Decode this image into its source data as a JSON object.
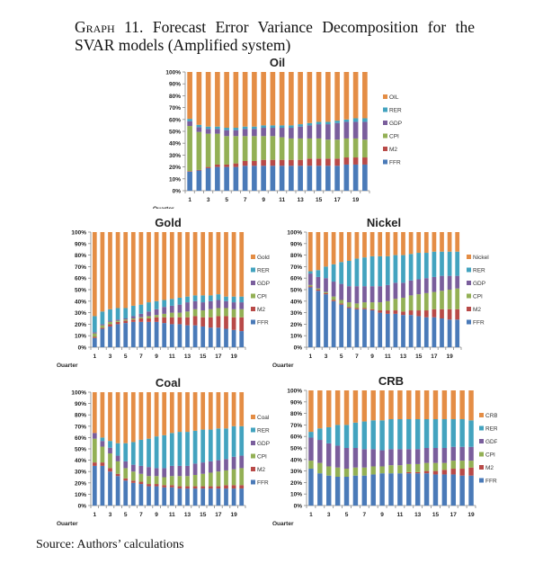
{
  "document": {
    "graph_label": "Graph 11.",
    "title": "Forecast Error Variance Decomposition for the SVAR models (Amplified system)",
    "source": "Source: Authors’ calculations"
  },
  "colors": {
    "FFR": "#4a7ab8",
    "M2": "#b84a48",
    "CPI": "#93b055",
    "GDP": "#7a5e9c",
    "RER": "#43a3bf",
    "Commodity": "#e48d45"
  },
  "chart_data": [
    {
      "type": "bar",
      "stacked": true,
      "title": "Oil",
      "xlabel": "Quarter",
      "ylabel": "",
      "ylim": [
        0,
        100
      ],
      "yticks": [
        "0%",
        "10%",
        "20%",
        "30%",
        "40%",
        "50%",
        "60%",
        "70%",
        "80%",
        "90%",
        "100%"
      ],
      "xtick_labels": [
        "1",
        "3",
        "5",
        "7",
        "9",
        "11",
        "13",
        "15",
        "17",
        "19"
      ],
      "categories": [
        1,
        2,
        3,
        4,
        5,
        6,
        7,
        8,
        9,
        10,
        11,
        12,
        13,
        14,
        15,
        16,
        17,
        18,
        19,
        20
      ],
      "legend": [
        "OIL",
        "RER",
        "GDP",
        "CPI",
        "M2",
        "FFR"
      ],
      "legend_position": "right",
      "series": [
        {
          "name": "FFR",
          "values": [
            16,
            17,
            19,
            20,
            20,
            20,
            21,
            21,
            21,
            21,
            21,
            21,
            21,
            21,
            21,
            21,
            21,
            22,
            22,
            22
          ]
        },
        {
          "name": "M2",
          "values": [
            0.5,
            0.5,
            1,
            2,
            2,
            3,
            4,
            4,
            5,
            5,
            5,
            5,
            5,
            6,
            6,
            6,
            6,
            6,
            6,
            6
          ]
        },
        {
          "name": "CPI",
          "values": [
            38,
            32,
            28,
            26,
            24,
            23,
            21,
            21,
            20,
            20,
            19,
            18,
            18,
            17,
            17,
            16,
            16,
            16,
            16,
            15
          ]
        },
        {
          "name": "GDP",
          "values": [
            4,
            4,
            4,
            4,
            5,
            5,
            6,
            6,
            7,
            7,
            8,
            9,
            10,
            11,
            12,
            13,
            14,
            14,
            14,
            15
          ]
        },
        {
          "name": "RER",
          "values": [
            2,
            2,
            2,
            2,
            2,
            2,
            2,
            2,
            2,
            2,
            2,
            2,
            2,
            2,
            2,
            2,
            2,
            2,
            3,
            3
          ]
        },
        {
          "name": "OIL",
          "values": [
            39.5,
            44.5,
            46,
            46,
            47,
            47,
            46,
            46,
            45,
            45,
            45,
            45,
            44,
            43,
            42,
            42,
            41,
            40,
            39,
            39
          ]
        }
      ]
    },
    {
      "type": "bar",
      "stacked": true,
      "title": "Gold",
      "xlabel": "Quarter",
      "ylabel": "",
      "ylim": [
        0,
        100
      ],
      "yticks": [
        "0%",
        "10%",
        "20%",
        "30%",
        "40%",
        "50%",
        "60%",
        "70%",
        "80%",
        "90%",
        "100%"
      ],
      "xtick_labels": [
        "1",
        "3",
        "5",
        "7",
        "9",
        "11",
        "13",
        "15",
        "17",
        "19"
      ],
      "categories": [
        1,
        2,
        3,
        4,
        5,
        6,
        7,
        8,
        9,
        10,
        11,
        12,
        13,
        14,
        15,
        16,
        17,
        18,
        19,
        20
      ],
      "legend": [
        "Gold",
        "RER",
        "GDP",
        "CPI",
        "M2",
        "FFR"
      ],
      "legend_position": "right",
      "series": [
        {
          "name": "FFR",
          "values": [
            8,
            16,
            18,
            20,
            21,
            22,
            22,
            22,
            22,
            21,
            20,
            20,
            19,
            19,
            18,
            17,
            17,
            16,
            15,
            14
          ]
        },
        {
          "name": "M2",
          "values": [
            1,
            1,
            2,
            2,
            2,
            2,
            3,
            3,
            4,
            5,
            6,
            6,
            7,
            8,
            8,
            9,
            10,
            11,
            11,
            12
          ]
        },
        {
          "name": "CPI",
          "values": [
            3,
            2,
            2,
            1,
            1,
            1,
            1,
            2,
            2,
            3,
            4,
            4,
            5,
            6,
            6,
            7,
            7,
            7,
            7,
            7
          ]
        },
        {
          "name": "GDP",
          "values": [
            1,
            1,
            1,
            1,
            1,
            2,
            3,
            4,
            5,
            6,
            6,
            7,
            8,
            7,
            7,
            7,
            7,
            6,
            6,
            6
          ]
        },
        {
          "name": "RER",
          "values": [
            14,
            11,
            10,
            10,
            9,
            9,
            8,
            8,
            7,
            6,
            6,
            6,
            5,
            5,
            6,
            5,
            5,
            4,
            5,
            5
          ]
        },
        {
          "name": "Gold",
          "values": [
            73,
            69,
            67,
            66,
            66,
            64,
            63,
            61,
            60,
            59,
            58,
            57,
            56,
            55,
            55,
            55,
            54,
            56,
            56,
            56
          ]
        }
      ]
    },
    {
      "type": "bar",
      "stacked": true,
      "title": "Nickel",
      "xlabel": "Quarter",
      "ylabel": "",
      "ylim": [
        0,
        100
      ],
      "yticks": [
        "0%",
        "10%",
        "20%",
        "30%",
        "40%",
        "50%",
        "60%",
        "70%",
        "80%",
        "90%",
        "100%"
      ],
      "xtick_labels": [
        "1",
        "3",
        "5",
        "7",
        "9",
        "11",
        "13",
        "15",
        "17",
        "19"
      ],
      "categories": [
        1,
        2,
        3,
        4,
        5,
        6,
        7,
        8,
        9,
        10,
        11,
        12,
        13,
        14,
        15,
        16,
        17,
        18,
        19,
        20
      ],
      "legend": [
        "Nickel",
        "RER",
        "GDP",
        "CPI",
        "M2",
        "FFR"
      ],
      "legend_position": "right",
      "series": [
        {
          "name": "FFR",
          "values": [
            52,
            49,
            46,
            40,
            37,
            34,
            33,
            33,
            32,
            30,
            29,
            29,
            28,
            28,
            27,
            26,
            26,
            25,
            24,
            24
          ]
        },
        {
          "name": "M2",
          "values": [
            1,
            1,
            1,
            1,
            1,
            1,
            1,
            1,
            1,
            2,
            3,
            3,
            3,
            4,
            5,
            6,
            7,
            8,
            9,
            9
          ]
        },
        {
          "name": "CPI",
          "values": [
            1,
            1,
            1,
            3,
            3,
            4,
            4,
            5,
            6,
            7,
            8,
            10,
            12,
            13,
            14,
            15,
            15,
            16,
            17,
            18
          ]
        },
        {
          "name": "GDP",
          "values": [
            10,
            10,
            12,
            13,
            14,
            14,
            15,
            14,
            14,
            14,
            14,
            14,
            13,
            13,
            13,
            13,
            13,
            13,
            12,
            11
          ]
        },
        {
          "name": "RER",
          "values": [
            2,
            6,
            10,
            15,
            19,
            22,
            24,
            25,
            26,
            26,
            25,
            24,
            24,
            23,
            23,
            22,
            22,
            21,
            21,
            21
          ]
        },
        {
          "name": "Nickel",
          "values": [
            34,
            33,
            30,
            28,
            26,
            25,
            23,
            22,
            21,
            21,
            21,
            20,
            20,
            19,
            18,
            18,
            17,
            17,
            17,
            17
          ]
        }
      ]
    },
    {
      "type": "bar",
      "stacked": true,
      "title": "Coal",
      "xlabel": "Quarter",
      "ylabel": "",
      "ylim": [
        0,
        100
      ],
      "yticks": [
        "0%",
        "10%",
        "20%",
        "30%",
        "40%",
        "50%",
        "60%",
        "70%",
        "80%",
        "90%",
        "100%"
      ],
      "xtick_labels": [
        "1",
        "3",
        "5",
        "7",
        "9",
        "11",
        "13",
        "15",
        "17",
        "19"
      ],
      "categories": [
        1,
        2,
        3,
        4,
        5,
        6,
        7,
        8,
        9,
        10,
        11,
        12,
        13,
        14,
        15,
        16,
        17,
        18,
        19,
        20
      ],
      "legend": [
        "Coal",
        "RER",
        "GDP",
        "CPI",
        "M2",
        "FFR"
      ],
      "legend_position": "right",
      "series": [
        {
          "name": "FFR",
          "values": [
            35,
            35,
            30,
            26,
            22,
            20,
            19,
            17,
            17,
            16,
            16,
            15,
            15,
            15,
            15,
            15,
            15,
            15,
            15,
            15
          ]
        },
        {
          "name": "M2",
          "values": [
            3,
            3,
            3,
            2,
            2,
            2,
            2,
            2,
            2,
            2,
            2,
            2,
            2,
            2,
            2,
            2,
            2,
            3,
            3,
            3
          ]
        },
        {
          "name": "CPI",
          "values": [
            21,
            14,
            13,
            11,
            9,
            8,
            7,
            7,
            7,
            7,
            8,
            9,
            9,
            10,
            11,
            12,
            13,
            13,
            14,
            15
          ]
        },
        {
          "name": "GDP",
          "values": [
            5,
            5,
            5,
            5,
            6,
            6,
            7,
            8,
            7,
            8,
            9,
            9,
            9,
            10,
            10,
            10,
            10,
            10,
            11,
            11
          ]
        },
        {
          "name": "RER",
          "values": [
            0,
            3,
            6,
            11,
            16,
            20,
            23,
            25,
            28,
            29,
            29,
            30,
            30,
            29,
            29,
            28,
            28,
            27,
            27,
            26
          ]
        },
        {
          "name": "Coal",
          "values": [
            36,
            40,
            43,
            45,
            45,
            44,
            42,
            41,
            39,
            38,
            36,
            35,
            35,
            34,
            33,
            33,
            32,
            32,
            30,
            30
          ]
        }
      ]
    },
    {
      "type": "bar",
      "stacked": true,
      "title": "CRB",
      "xlabel": "Quarter",
      "ylabel": "",
      "ylim": [
        0,
        100
      ],
      "yticks": [
        "0%",
        "10%",
        "20%",
        "30%",
        "40%",
        "50%",
        "60%",
        "70%",
        "80%",
        "90%",
        "100%"
      ],
      "xtick_labels": [
        "1",
        "3",
        "5",
        "7",
        "9",
        "11",
        "13",
        "15",
        "17",
        "19"
      ],
      "categories": [
        1,
        2,
        3,
        4,
        5,
        6,
        7,
        8,
        9,
        10,
        11,
        12,
        13,
        14,
        15,
        16,
        17,
        18,
        19
      ],
      "legend": [
        "CRB",
        "RER",
        "GDP",
        "CPI",
        "M2",
        "FFR"
      ],
      "legend_position": "right",
      "series": [
        {
          "name": "FFR",
          "values": [
            32,
            28,
            26,
            25,
            25,
            26,
            26,
            27,
            28,
            28,
            28,
            28,
            28,
            28,
            27,
            27,
            27,
            26,
            26
          ]
        },
        {
          "name": "M2",
          "values": [
            0,
            0,
            0,
            0,
            0,
            0,
            0,
            0,
            0,
            0,
            0,
            1,
            1,
            2,
            3,
            4,
            5,
            6,
            7
          ]
        },
        {
          "name": "CPI",
          "values": [
            7,
            9,
            8,
            8,
            7,
            7,
            7,
            7,
            6,
            7,
            7,
            7,
            7,
            7,
            7,
            6,
            7,
            7,
            6
          ]
        },
        {
          "name": "GDP",
          "values": [
            20,
            20,
            20,
            19,
            18,
            17,
            16,
            15,
            14,
            14,
            14,
            13,
            13,
            13,
            13,
            13,
            12,
            12,
            12
          ]
        },
        {
          "name": "RER",
          "values": [
            5,
            10,
            14,
            18,
            20,
            22,
            24,
            25,
            26,
            26,
            26,
            26,
            26,
            25,
            25,
            25,
            24,
            24,
            23
          ]
        },
        {
          "name": "CRB",
          "values": [
            36,
            33,
            32,
            30,
            30,
            28,
            27,
            26,
            26,
            25,
            25,
            25,
            25,
            25,
            25,
            25,
            25,
            25,
            26
          ]
        }
      ]
    }
  ]
}
